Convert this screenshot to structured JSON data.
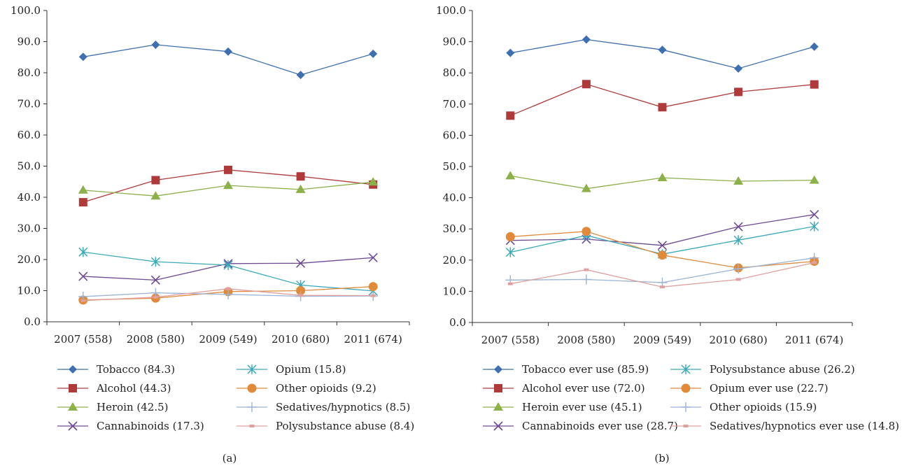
{
  "chart_data": [
    {
      "type": "line",
      "caption": "(a)",
      "categories": [
        "2007 (558)",
        "2008 (580)",
        "2009 (549)",
        "2010 (680)",
        "2011 (674)"
      ],
      "ylim": [
        0,
        100
      ],
      "yticks": [
        "0.0",
        "10.0",
        "20.0",
        "30.0",
        "40.0",
        "50.0",
        "60.0",
        "70.0",
        "80.0",
        "90.0",
        "100.0"
      ],
      "grid": false,
      "legend_placement": "bottom",
      "series": [
        {
          "name": "Tobacco (84.3)",
          "color": "#3E6FB0",
          "marker": "diamond",
          "values": [
            85.1,
            89.0,
            86.8,
            79.3,
            86.1
          ]
        },
        {
          "name": "Alcohol (44.3)",
          "color": "#B03A3A",
          "marker": "square",
          "values": [
            38.4,
            45.5,
            48.8,
            46.7,
            44.1
          ]
        },
        {
          "name": "Heroin (42.5)",
          "color": "#8CB04A",
          "marker": "triangle",
          "values": [
            42.3,
            40.4,
            43.8,
            42.5,
            44.9
          ]
        },
        {
          "name": "Cannabinoids (17.3)",
          "color": "#6E4A93",
          "marker": "x",
          "values": [
            14.6,
            13.4,
            18.7,
            18.8,
            20.6
          ]
        },
        {
          "name": "Opium (15.8)",
          "color": "#3AAAB8",
          "marker": "asterisk",
          "values": [
            22.4,
            19.3,
            18.2,
            11.8,
            9.9
          ]
        },
        {
          "name": "Other opioids (9.2)",
          "color": "#E08A3A",
          "marker": "circle",
          "values": [
            7.0,
            7.6,
            9.7,
            10.0,
            11.3
          ]
        },
        {
          "name": "Sedatives/hypnotics (8.5)",
          "color": "#9AB3D6",
          "marker": "plus",
          "values": [
            8.1,
            9.3,
            8.8,
            8.2,
            8.3
          ]
        },
        {
          "name": "Polysubstance abuse (8.4)",
          "color": "#E0A0A0",
          "marker": "dash",
          "values": [
            6.8,
            7.9,
            10.6,
            8.5,
            8.4
          ]
        }
      ]
    },
    {
      "type": "line",
      "caption": "(b)",
      "categories": [
        "2007 (558)",
        "2008 (580)",
        "2009 (549)",
        "2010 (680)",
        "2011 (674)"
      ],
      "ylim": [
        0,
        100
      ],
      "yticks": [
        "0.0",
        "10.0",
        "20.0",
        "30.0",
        "40.0",
        "50.0",
        "60.0",
        "70.0",
        "80.0",
        "90.0",
        "100.0"
      ],
      "grid": false,
      "legend_placement": "bottom",
      "series": [
        {
          "name": "Tobacco ever use (85.9)",
          "color": "#3E6FB0",
          "marker": "diamond",
          "values": [
            86.4,
            90.7,
            87.4,
            81.4,
            88.4
          ]
        },
        {
          "name": "Alcohol ever use (72.0)",
          "color": "#B03A3A",
          "marker": "square",
          "values": [
            66.3,
            76.4,
            69.0,
            73.9,
            76.3
          ]
        },
        {
          "name": "Heroin ever use (45.1)",
          "color": "#8CB04A",
          "marker": "triangle",
          "values": [
            47.0,
            42.9,
            46.4,
            45.3,
            45.6
          ]
        },
        {
          "name": "Cannabinoids ever use (28.7)",
          "color": "#6E4A93",
          "marker": "x",
          "values": [
            26.3,
            26.7,
            24.7,
            30.7,
            34.6
          ]
        },
        {
          "name": "Polysubstance abuse (26.2)",
          "color": "#3AAAB8",
          "marker": "asterisk",
          "values": [
            22.5,
            27.9,
            21.9,
            26.4,
            30.8
          ]
        },
        {
          "name": "Opium ever use (22.7)",
          "color": "#E08A3A",
          "marker": "circle",
          "values": [
            27.5,
            29.2,
            21.6,
            17.5,
            19.6
          ]
        },
        {
          "name": "Other opioids (15.9)",
          "color": "#9AB3D6",
          "marker": "plus",
          "values": [
            13.6,
            13.8,
            12.8,
            17.2,
            20.7
          ]
        },
        {
          "name": "Sedatives/hypnotics ever use (14.8)",
          "color": "#E0A0A0",
          "marker": "dash",
          "values": [
            12.4,
            16.9,
            11.4,
            13.8,
            19.2
          ]
        }
      ]
    }
  ]
}
